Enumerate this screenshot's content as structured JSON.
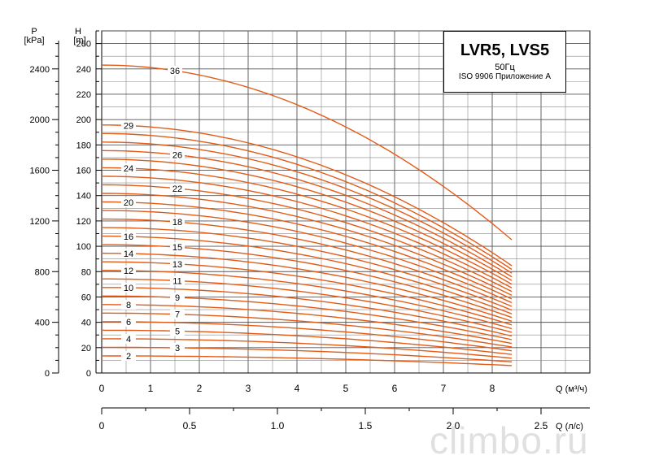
{
  "chart_data": {
    "type": "line",
    "title": "LVR5, LVS5",
    "subtitle": "50Гц",
    "standard": "ISO 9906 Приложение А",
    "ylabel_head": "H",
    "ylabel_head_unit": "[m]",
    "ylabel_pressure": "P",
    "ylabel_pressure_unit": "[kPa]",
    "xlabel_m3h": "Q (м³/ч)",
    "xlabel_ls": "Q (л/с)",
    "xlim_m3h": [
      0,
      10
    ],
    "ylim_head": [
      0,
      270
    ],
    "ylim_pressure": [
      0,
      2700
    ],
    "x_ticks_m3h": [
      "0",
      "1",
      "2",
      "3",
      "4",
      "5",
      "6",
      "7",
      "8"
    ],
    "x_ticks_ls": [
      "0",
      "0.5",
      "1.0",
      "1.5",
      "2.0",
      "2.5"
    ],
    "y_ticks_head": [
      "0",
      "20",
      "40",
      "60",
      "80",
      "100",
      "120",
      "140",
      "160",
      "180",
      "200",
      "220",
      "240",
      "260"
    ],
    "y_ticks_pressure": [
      "0",
      "400",
      "800",
      "1200",
      "1600",
      "2000",
      "2400"
    ],
    "grid": true,
    "curve_color": "#e25c18",
    "q_max_m3h": 8.4,
    "head_per_stage_shutoff_m": 6.75,
    "head_per_stage_at_qmax_m": 2.92,
    "curve_labels": [
      {
        "label": "36",
        "stages": 36,
        "q": 1.5
      },
      {
        "label": "29",
        "stages": 29,
        "q": 0.55
      },
      {
        "label": "26",
        "stages": 26,
        "q": 1.55
      },
      {
        "label": "24",
        "stages": 24,
        "q": 0.55
      },
      {
        "label": "22",
        "stages": 22,
        "q": 1.55
      },
      {
        "label": "20",
        "stages": 20,
        "q": 0.55
      },
      {
        "label": "18",
        "stages": 18,
        "q": 1.55
      },
      {
        "label": "16",
        "stages": 16,
        "q": 0.55
      },
      {
        "label": "15",
        "stages": 15,
        "q": 1.55
      },
      {
        "label": "14",
        "stages": 14,
        "q": 0.55
      },
      {
        "label": "13",
        "stages": 13,
        "q": 1.55
      },
      {
        "label": "12",
        "stages": 12,
        "q": 0.55
      },
      {
        "label": "11",
        "stages": 11,
        "q": 1.55
      },
      {
        "label": "10",
        "stages": 10,
        "q": 0.55
      },
      {
        "label": "9",
        "stages": 9,
        "q": 1.55
      },
      {
        "label": "8",
        "stages": 8,
        "q": 0.55
      },
      {
        "label": "7",
        "stages": 7,
        "q": 1.55
      },
      {
        "label": "6",
        "stages": 6,
        "q": 0.55
      },
      {
        "label": "5",
        "stages": 5,
        "q": 1.55
      },
      {
        "label": "4",
        "stages": 4,
        "q": 0.55
      },
      {
        "label": "3",
        "stages": 3,
        "q": 1.55
      },
      {
        "label": "2",
        "stages": 2,
        "q": 0.55
      }
    ],
    "stage_curves": [
      2,
      3,
      4,
      5,
      6,
      7,
      8,
      9,
      10,
      11,
      12,
      13,
      14,
      15,
      16,
      17,
      18,
      19,
      20,
      21,
      22,
      23,
      24,
      25,
      26,
      27,
      28,
      29,
      36
    ]
  },
  "watermark": "climbo.ru"
}
